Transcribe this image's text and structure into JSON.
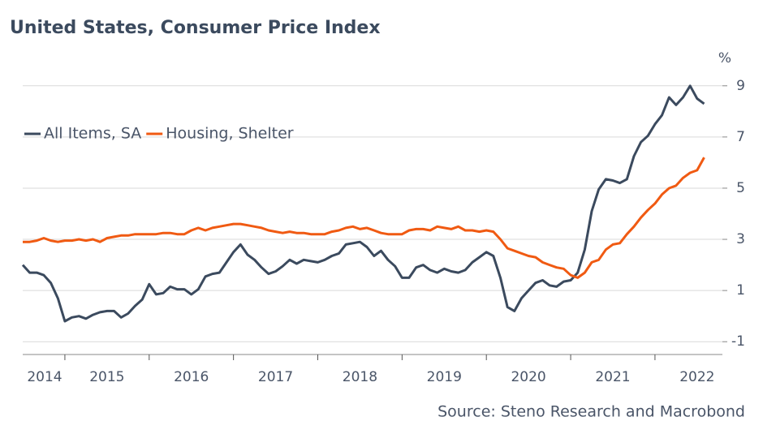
{
  "chart_data": {
    "type": "line",
    "title": "United States, Consumer Price Index",
    "y_unit": "%",
    "source": "Source: Steno Research and Macrobond",
    "x": [
      2014.5,
      2014.583,
      2014.667,
      2014.75,
      2014.833,
      2014.917,
      2015,
      2015.083,
      2015.167,
      2015.25,
      2015.333,
      2015.417,
      2015.5,
      2015.583,
      2015.667,
      2015.75,
      2015.833,
      2015.917,
      2016,
      2016.083,
      2016.167,
      2016.25,
      2016.333,
      2016.417,
      2016.5,
      2016.583,
      2016.667,
      2016.75,
      2016.833,
      2016.917,
      2017,
      2017.083,
      2017.167,
      2017.25,
      2017.333,
      2017.417,
      2017.5,
      2017.583,
      2017.667,
      2017.75,
      2017.833,
      2017.917,
      2018,
      2018.083,
      2018.167,
      2018.25,
      2018.333,
      2018.417,
      2018.5,
      2018.583,
      2018.667,
      2018.75,
      2018.833,
      2018.917,
      2019,
      2019.083,
      2019.167,
      2019.25,
      2019.333,
      2019.417,
      2019.5,
      2019.583,
      2019.667,
      2019.75,
      2019.833,
      2019.917,
      2020,
      2020.083,
      2020.167,
      2020.25,
      2020.333,
      2020.417,
      2020.5,
      2020.583,
      2020.667,
      2020.75,
      2020.833,
      2020.917,
      2021,
      2021.083,
      2021.167,
      2021.25,
      2021.333,
      2021.417,
      2021.5,
      2021.583,
      2021.667,
      2021.75,
      2021.833,
      2021.917,
      2022,
      2022.083,
      2022.167,
      2022.25,
      2022.333,
      2022.417,
      2022.5,
      2022.583
    ],
    "series": [
      {
        "name": "All Items, SA",
        "color": "#3b4a5e",
        "values": [
          2.0,
          1.7,
          1.7,
          1.6,
          1.3,
          0.7,
          -0.2,
          -0.05,
          0.0,
          -0.1,
          0.05,
          0.15,
          0.2,
          0.2,
          -0.05,
          0.1,
          0.4,
          0.65,
          1.25,
          0.85,
          0.9,
          1.15,
          1.05,
          1.05,
          0.85,
          1.05,
          1.55,
          1.65,
          1.7,
          2.1,
          2.5,
          2.8,
          2.4,
          2.2,
          1.9,
          1.65,
          1.75,
          1.95,
          2.2,
          2.05,
          2.2,
          2.15,
          2.1,
          2.2,
          2.35,
          2.45,
          2.8,
          2.85,
          2.9,
          2.7,
          2.35,
          2.55,
          2.2,
          1.95,
          1.5,
          1.5,
          1.9,
          2.0,
          1.8,
          1.7,
          1.85,
          1.75,
          1.7,
          1.8,
          2.1,
          2.3,
          2.5,
          2.35,
          1.5,
          0.35,
          0.2,
          0.7,
          1.0,
          1.3,
          1.4,
          1.2,
          1.15,
          1.35,
          1.4,
          1.7,
          2.6,
          4.1,
          4.95,
          5.35,
          5.3,
          5.2,
          5.35,
          6.25,
          6.8,
          7.05,
          7.5,
          7.85,
          8.55,
          8.25,
          8.55,
          9.0,
          8.5,
          8.3
        ]
      },
      {
        "name": "Housing, Shelter",
        "color": "#f05a12",
        "values": [
          2.9,
          2.9,
          2.95,
          3.05,
          2.95,
          2.9,
          2.95,
          2.95,
          3.0,
          2.95,
          3.0,
          2.9,
          3.05,
          3.1,
          3.15,
          3.15,
          3.2,
          3.2,
          3.2,
          3.2,
          3.25,
          3.25,
          3.2,
          3.2,
          3.35,
          3.45,
          3.35,
          3.45,
          3.5,
          3.55,
          3.6,
          3.6,
          3.55,
          3.5,
          3.45,
          3.35,
          3.3,
          3.25,
          3.3,
          3.25,
          3.25,
          3.2,
          3.2,
          3.2,
          3.3,
          3.35,
          3.45,
          3.5,
          3.4,
          3.45,
          3.35,
          3.25,
          3.2,
          3.2,
          3.2,
          3.35,
          3.4,
          3.4,
          3.35,
          3.5,
          3.45,
          3.4,
          3.5,
          3.35,
          3.35,
          3.3,
          3.35,
          3.3,
          3.0,
          2.65,
          2.55,
          2.45,
          2.35,
          2.3,
          2.1,
          2.0,
          1.9,
          1.85,
          1.6,
          1.5,
          1.7,
          2.1,
          2.2,
          2.6,
          2.8,
          2.85,
          3.2,
          3.5,
          3.85,
          4.15,
          4.4,
          4.75,
          5.0,
          5.1,
          5.4,
          5.6,
          5.7,
          6.2
        ]
      }
    ],
    "xlim": [
      2014.5,
      2022.8
    ],
    "xticks": [
      2014,
      2015,
      2016,
      2017,
      2018,
      2019,
      2020,
      2021,
      2022
    ],
    "ylim": [
      -1.5,
      9.5
    ],
    "yticks": [
      -1,
      1,
      3,
      5,
      7,
      9
    ],
    "grid": true
  }
}
